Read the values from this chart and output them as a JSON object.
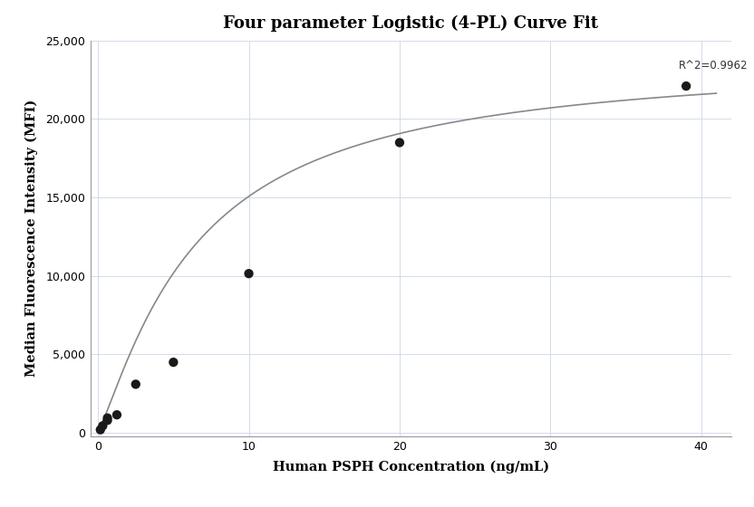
{
  "title": "Four parameter Logistic (4-PL) Curve Fit",
  "xlabel": "Human PSPH Concentration (ng/mL)",
  "ylabel": "Median Fluorescence Intensity (MFI)",
  "scatter_x": [
    0.156,
    0.3125,
    0.625,
    0.625,
    1.25,
    2.5,
    5.0,
    10.0,
    20.0,
    39.0
  ],
  "scatter_y": [
    200,
    450,
    800,
    950,
    1150,
    3100,
    4500,
    10150,
    18500,
    22100
  ],
  "r_squared": "R^2=0.9962",
  "xlim": [
    -0.5,
    42
  ],
  "ylim": [
    -200,
    25000
  ],
  "xticks": [
    0,
    10,
    20,
    30,
    40
  ],
  "yticks": [
    0,
    5000,
    10000,
    15000,
    20000,
    25000
  ],
  "scatter_color": "#1a1a1a",
  "curve_color": "#888888",
  "background_color": "#ffffff",
  "grid_color": "#ccd6e8",
  "title_fontsize": 13,
  "label_fontsize": 10.5,
  "tick_fontsize": 9,
  "annotation_fontsize": 8.5,
  "4pl_A": 100,
  "4pl_B": 1.2,
  "4pl_C": 6.5,
  "4pl_D": 24000
}
